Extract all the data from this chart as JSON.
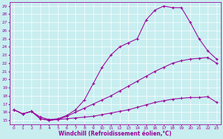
{
  "xlabel": "Windchill (Refroidissement éolien,°C)",
  "ylabel": "",
  "bg_color": "#c8eef0",
  "line_color": "#990099",
  "grid_color": "#ffffff",
  "xlim": [
    0,
    23
  ],
  "ylim": [
    15,
    29
  ],
  "xticks": [
    0,
    1,
    2,
    3,
    4,
    5,
    6,
    7,
    8,
    9,
    10,
    11,
    12,
    13,
    14,
    15,
    16,
    17,
    18,
    19,
    20,
    21,
    22,
    23
  ],
  "yticks": [
    15,
    16,
    17,
    18,
    19,
    20,
    21,
    22,
    23,
    24,
    25,
    26,
    27,
    28,
    29
  ],
  "curve1_x": [
    0,
    1,
    2,
    3,
    4,
    5,
    6,
    7,
    8,
    9,
    10,
    11,
    12,
    13,
    14,
    15,
    16,
    17,
    18,
    19,
    20,
    21,
    22,
    23
  ],
  "curve1_y": [
    16.3,
    15.8,
    16.1,
    15.2,
    15.0,
    15.1,
    15.2,
    15.3,
    15.4,
    15.5,
    15.7,
    15.9,
    16.1,
    16.3,
    16.6,
    16.9,
    17.2,
    17.4,
    17.6,
    17.7,
    17.8,
    17.8,
    17.9,
    17.2
  ],
  "curve2_x": [
    0,
    1,
    2,
    3,
    4,
    5,
    6,
    7,
    8,
    9,
    10,
    11,
    12,
    13,
    14,
    15,
    16,
    17,
    18,
    19,
    20,
    21,
    22,
    23
  ],
  "curve2_y": [
    16.3,
    15.8,
    16.1,
    15.2,
    15.0,
    15.1,
    15.5,
    16.0,
    16.5,
    17.0,
    17.5,
    18.0,
    18.6,
    19.2,
    19.8,
    20.4,
    21.0,
    21.5,
    22.0,
    22.3,
    22.5,
    22.6,
    22.7,
    22.0
  ],
  "curve3_x": [
    0,
    1,
    2,
    3,
    4,
    5,
    6,
    7,
    8,
    9,
    10,
    11,
    12,
    13,
    14,
    15,
    16,
    17,
    18,
    19,
    20,
    21,
    22,
    23
  ],
  "curve3_y": [
    16.3,
    15.8,
    16.1,
    15.4,
    15.1,
    15.2,
    15.6,
    16.3,
    17.5,
    19.5,
    21.5,
    23.0,
    24.0,
    24.5,
    25.0,
    27.3,
    28.5,
    29.0,
    28.8,
    28.8,
    27.0,
    25.0,
    23.5,
    22.5
  ],
  "marker": "+",
  "markersize": 3,
  "linewidth": 0.8,
  "tick_fontsize": 4.5,
  "xlabel_fontsize": 5.5
}
